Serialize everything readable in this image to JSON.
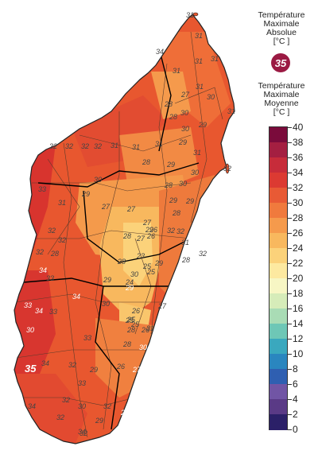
{
  "legend": {
    "abs_title_lines": [
      "Température",
      "Maximale",
      "Absolue",
      "[°C ]"
    ],
    "abs_value": "35",
    "abs_color": "#9b1a43",
    "moy_title_lines": [
      "Température",
      "Maximale",
      "Moyenne",
      "[°C ]"
    ],
    "ticks": [
      "40",
      "38",
      "36",
      "34",
      "32",
      "30",
      "28",
      "26",
      "24",
      "22",
      "20",
      "18",
      "16",
      "14",
      "12",
      "10",
      "8",
      "6",
      "4",
      "2",
      "0"
    ],
    "colors": [
      "#7a0b3b",
      "#a41f41",
      "#c72c3a",
      "#dc3a32",
      "#e85a35",
      "#f07a3d",
      "#f59a4c",
      "#f8b85e",
      "#fbd27a",
      "#fde9a0",
      "#f7f6c4",
      "#d6ecb9",
      "#a9dcb5",
      "#6ec7b6",
      "#3aa8be",
      "#2a86bf",
      "#2f5fb1",
      "#7155a5",
      "#5a3a86",
      "#2b2068"
    ]
  },
  "map": {
    "labels": [
      "31",
      "34",
      "31",
      "31",
      "31",
      "31",
      "31",
      "27",
      "28",
      "30",
      "30",
      "31",
      "28",
      "29",
      "30",
      "29",
      "31",
      "32",
      "32",
      "32",
      "32",
      "31",
      "31",
      "31",
      "32",
      "29",
      "30",
      "30",
      "30",
      "28",
      "28",
      "29",
      "28",
      "33",
      "31",
      "29",
      "29",
      "27",
      "27",
      "32",
      "32",
      "32",
      "28",
      "27",
      "29",
      "26",
      "26",
      "28",
      "27",
      "32",
      "32",
      "32",
      "28",
      "23",
      "25",
      "28",
      "25",
      "31",
      "29",
      "29",
      "24",
      "30",
      "33",
      "34",
      "29",
      "34",
      "33",
      "30",
      "26",
      "25",
      "28",
      "26",
      "27",
      "33",
      "34",
      "30",
      "25",
      "25",
      "33",
      "28",
      "30",
      "31",
      "34",
      "32",
      "29",
      "26",
      "27",
      "33",
      "34",
      "32",
      "30",
      "32",
      "29",
      "34",
      "32",
      "32",
      "29"
    ],
    "abs_point_label": "35"
  }
}
